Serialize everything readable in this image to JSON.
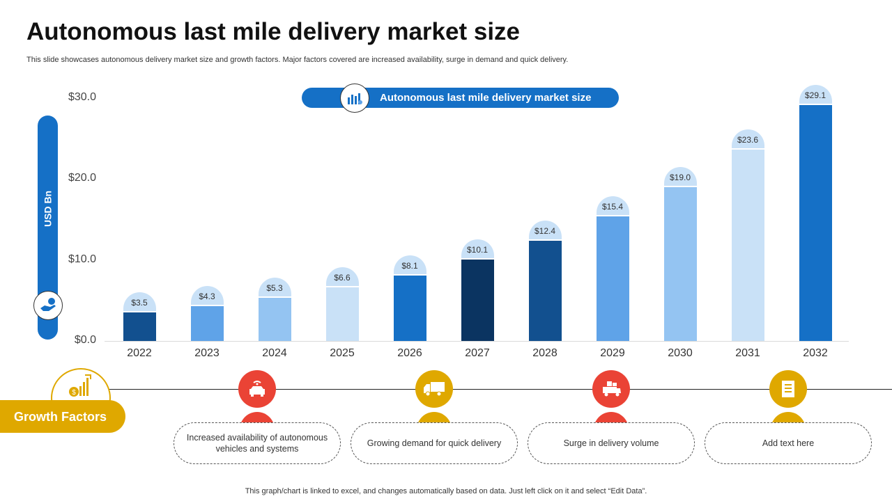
{
  "title": "Autonomous last mile delivery market size",
  "subtitle": "This slide showcases autonomous delivery market size and growth factors. Major factors covered are increased availability, surge in demand and quick delivery.",
  "footer": "This graph/chart is linked to excel,  and changes automatically based on data. Just left click on it and select “Edit Data”.",
  "chart_data": {
    "type": "bar",
    "legend": "Autonomous last mile delivery market size",
    "ylabel": "USD Bn",
    "ylim": [
      0,
      30
    ],
    "yticks": [
      "$0.0",
      "$10.0",
      "$20.0",
      "$30.0"
    ],
    "categories": [
      "2022",
      "2023",
      "2024",
      "2025",
      "2026",
      "2027",
      "2028",
      "2029",
      "2030",
      "2031",
      "2032"
    ],
    "values": [
      3.5,
      4.3,
      5.3,
      6.6,
      8.1,
      10.1,
      12.4,
      15.4,
      19.0,
      23.6,
      29.1
    ],
    "labels": [
      "$3.5",
      "$4.3",
      "$5.3",
      "$6.6",
      "$8.1",
      "$10.1",
      "$12.4",
      "$15.4",
      "$19.0",
      "$23.6",
      "$29.1"
    ],
    "colors": [
      "#12508f",
      "#5fa3e8",
      "#94c4f2",
      "#c9e1f7",
      "#1570c6",
      "#0b3461",
      "#12508f",
      "#5fa3e8",
      "#94c4f2",
      "#c9e1f7",
      "#1570c6"
    ]
  },
  "growth": {
    "label": "Growth Factors",
    "color": "#dfa800",
    "factors": [
      {
        "text": "Increased availability of autonomous vehicles and systems",
        "icon": "car-wifi-icon",
        "color": "#ea4335"
      },
      {
        "text": "Growing demand for quick delivery",
        "icon": "truck-icon",
        "color": "#dfa800"
      },
      {
        "text": "Surge in delivery volume",
        "icon": "delivery-truck-boxes-icon",
        "color": "#ea4335"
      },
      {
        "text": "Add text here",
        "icon": "document-icon",
        "color": "#dfa800"
      }
    ]
  }
}
